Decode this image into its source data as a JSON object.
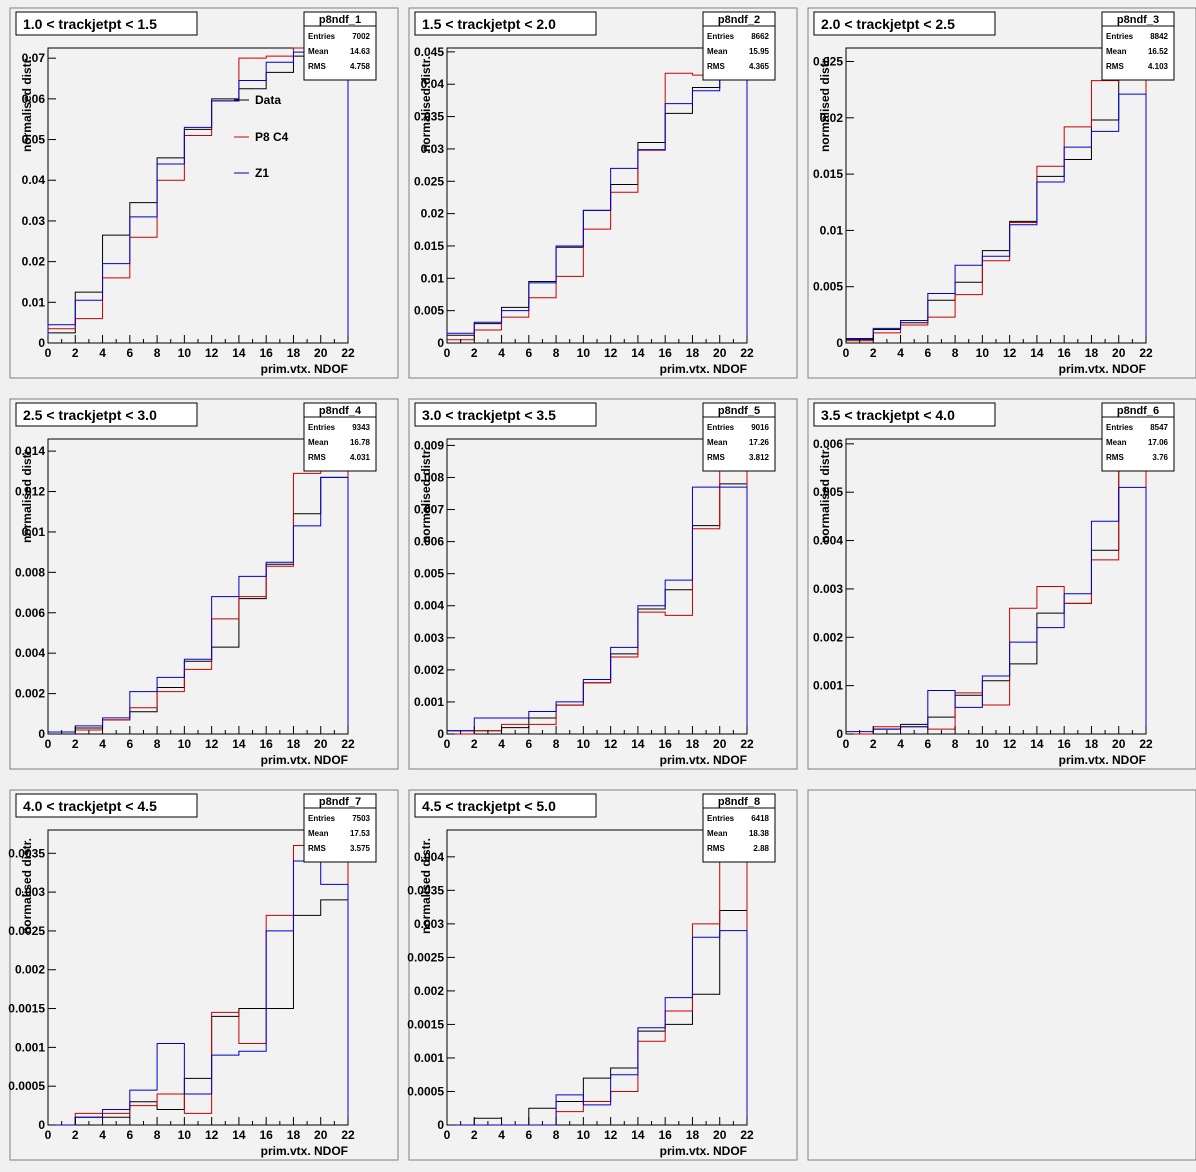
{
  "colors": {
    "data": "#000000",
    "p8c4": "#cc0000",
    "z1": "#0000cc",
    "pad": "#f2f2f2",
    "frame": "#808080"
  },
  "xlabel": "prim.vtx. NDOF",
  "ylabel": "normalised distr.",
  "legend": [
    "Data",
    "P8 C4",
    "Z1"
  ],
  "stats_labels": [
    "Entries",
    "Mean",
    "RMS"
  ],
  "chart_data": [
    {
      "type": "histogram",
      "title": "1.0 < trackjetpt < 1.5",
      "name": "p8ndf_1",
      "stats": {
        "entries": "7002",
        "mean": "14.63",
        "rms": "4.758"
      },
      "xlim": [
        0,
        22
      ],
      "ylim": [
        0,
        0.0725
      ],
      "xticks": [
        "0",
        "2",
        "4",
        "6",
        "8",
        "10",
        "12",
        "14",
        "16",
        "18",
        "20",
        "22"
      ],
      "yticks": [
        [
          0,
          "0"
        ],
        [
          0.01,
          "0.01"
        ],
        [
          0.02,
          "0.02"
        ],
        [
          0.03,
          "0.03"
        ],
        [
          0.04,
          "0.04"
        ],
        [
          0.05,
          "0.05"
        ],
        [
          0.06,
          "0.06"
        ],
        [
          0.07,
          "0.07"
        ]
      ],
      "bin_edges": [
        0,
        2,
        4,
        6,
        8,
        10,
        12,
        14,
        16,
        18,
        20,
        22
      ],
      "series": [
        {
          "name": "Data",
          "color": "#000000",
          "values": [
            0.0025,
            0.0125,
            0.0265,
            0.0345,
            0.0455,
            0.0525,
            0.06,
            0.0625,
            0.0665,
            0.0705,
            0.0665
          ]
        },
        {
          "name": "P8 C4",
          "color": "#cc0000",
          "values": [
            0.0035,
            0.006,
            0.016,
            0.026,
            0.04,
            0.051,
            0.0595,
            0.07,
            0.0705,
            0.0725,
            0.0675
          ]
        },
        {
          "name": "Z1",
          "color": "#0000cc",
          "values": [
            0.0045,
            0.0105,
            0.0195,
            0.031,
            0.044,
            0.053,
            0.0595,
            0.0645,
            0.069,
            0.0715,
            0.066
          ]
        }
      ]
    },
    {
      "type": "histogram",
      "title": "1.5 < trackjetpt < 2.0",
      "name": "p8ndf_2",
      "stats": {
        "entries": "8662",
        "mean": "15.95",
        "rms": "4.365"
      },
      "xlim": [
        0,
        22
      ],
      "ylim": [
        0,
        0.0456
      ],
      "xticks": [
        "0",
        "2",
        "4",
        "6",
        "8",
        "10",
        "12",
        "14",
        "16",
        "18",
        "20",
        "22"
      ],
      "yticks": [
        [
          0,
          "0"
        ],
        [
          0.005,
          "0.005"
        ],
        [
          0.01,
          "0.01"
        ],
        [
          0.015,
          "0.015"
        ],
        [
          0.02,
          "0.02"
        ],
        [
          0.025,
          "0.025"
        ],
        [
          0.03,
          "0.03"
        ],
        [
          0.035,
          "0.035"
        ],
        [
          0.04,
          "0.04"
        ],
        [
          0.045,
          "0.045"
        ]
      ],
      "bin_edges": [
        0,
        2,
        4,
        6,
        8,
        10,
        12,
        14,
        16,
        18,
        20,
        22
      ],
      "series": [
        {
          "name": "Data",
          "color": "#000000",
          "values": [
            0.0012,
            0.003,
            0.0055,
            0.0095,
            0.0148,
            0.0205,
            0.0245,
            0.031,
            0.0355,
            0.0395,
            0.0428
          ]
        },
        {
          "name": "P8 C4",
          "color": "#cc0000",
          "values": [
            0.0005,
            0.002,
            0.004,
            0.007,
            0.0103,
            0.0176,
            0.0233,
            0.0298,
            0.0417,
            0.0414,
            0.0452
          ]
        },
        {
          "name": "Z1",
          "color": "#0000cc",
          "values": [
            0.0015,
            0.0032,
            0.005,
            0.0093,
            0.015,
            0.0205,
            0.027,
            0.0299,
            0.037,
            0.039,
            0.041
          ]
        }
      ]
    },
    {
      "type": "histogram",
      "title": "2.0 < trackjetpt < 2.5",
      "name": "p8ndf_3",
      "stats": {
        "entries": "8842",
        "mean": "16.52",
        "rms": "4.103"
      },
      "xlim": [
        0,
        22
      ],
      "ylim": [
        0,
        0.0262
      ],
      "xticks": [
        "0",
        "2",
        "4",
        "6",
        "8",
        "10",
        "12",
        "14",
        "16",
        "18",
        "20",
        "22"
      ],
      "yticks": [
        [
          0,
          "0"
        ],
        [
          0.005,
          "0.005"
        ],
        [
          0.01,
          "0.01"
        ],
        [
          0.015,
          "0.015"
        ],
        [
          0.02,
          "0.02"
        ],
        [
          0.025,
          "0.025"
        ]
      ],
      "bin_edges": [
        0,
        2,
        4,
        6,
        8,
        10,
        12,
        14,
        16,
        18,
        20,
        22
      ],
      "series": [
        {
          "name": "Data",
          "color": "#000000",
          "values": [
            0.0003,
            0.0012,
            0.0018,
            0.0038,
            0.0054,
            0.0082,
            0.0108,
            0.0148,
            0.0163,
            0.0198,
            0.0235
          ]
        },
        {
          "name": "P8 C4",
          "color": "#cc0000",
          "values": [
            0.0002,
            0.0009,
            0.0016,
            0.0023,
            0.0043,
            0.0073,
            0.0107,
            0.0157,
            0.0192,
            0.0233,
            0.0262
          ]
        },
        {
          "name": "Z1",
          "color": "#0000cc",
          "values": [
            0.0004,
            0.0013,
            0.002,
            0.0044,
            0.0069,
            0.0077,
            0.0105,
            0.0143,
            0.0174,
            0.0188,
            0.0221
          ]
        }
      ]
    },
    {
      "type": "histogram",
      "title": "2.5 < trackjetpt < 3.0",
      "name": "p8ndf_4",
      "stats": {
        "entries": "9343",
        "mean": "16.78",
        "rms": "4.031"
      },
      "xlim": [
        0,
        22
      ],
      "ylim": [
        0,
        0.0146
      ],
      "xticks": [
        "0",
        "2",
        "4",
        "6",
        "8",
        "10",
        "12",
        "14",
        "16",
        "18",
        "20",
        "22"
      ],
      "yticks": [
        [
          0,
          "0"
        ],
        [
          0.002,
          "0.002"
        ],
        [
          0.004,
          "0.004"
        ],
        [
          0.006,
          "0.006"
        ],
        [
          0.008,
          "0.008"
        ],
        [
          0.01,
          "0.01"
        ],
        [
          0.012,
          "0.012"
        ],
        [
          0.014,
          "0.014"
        ]
      ],
      "bin_edges": [
        0,
        2,
        4,
        6,
        8,
        10,
        12,
        14,
        16,
        18,
        20,
        22
      ],
      "series": [
        {
          "name": "Data",
          "color": "#000000",
          "values": [
            0.0001,
            0.0003,
            0.0007,
            0.0011,
            0.0023,
            0.0036,
            0.0043,
            0.0067,
            0.0084,
            0.0109,
            0.0127
          ]
        },
        {
          "name": "P8 C4",
          "color": "#cc0000",
          "values": [
            0.0001,
            0.0002,
            0.0007,
            0.0013,
            0.0021,
            0.0032,
            0.0057,
            0.0068,
            0.0083,
            0.0129,
            0.0135
          ]
        },
        {
          "name": "Z1",
          "color": "#0000cc",
          "values": [
            0.0001,
            0.0004,
            0.0008,
            0.0021,
            0.0028,
            0.0037,
            0.0068,
            0.0078,
            0.0085,
            0.0103,
            0.0127
          ]
        }
      ]
    },
    {
      "type": "histogram",
      "title": "3.0 < trackjetpt < 3.5",
      "name": "p8ndf_5",
      "stats": {
        "entries": "9016",
        "mean": "17.26",
        "rms": "3.812"
      },
      "xlim": [
        0,
        22
      ],
      "ylim": [
        0,
        0.0092
      ],
      "xticks": [
        "0",
        "2",
        "4",
        "6",
        "8",
        "10",
        "12",
        "14",
        "16",
        "18",
        "20",
        "22"
      ],
      "yticks": [
        [
          0,
          "0"
        ],
        [
          0.001,
          "0.001"
        ],
        [
          0.002,
          "0.002"
        ],
        [
          0.003,
          "0.003"
        ],
        [
          0.004,
          "0.004"
        ],
        [
          0.005,
          "0.005"
        ],
        [
          0.006,
          "0.006"
        ],
        [
          0.007,
          "0.007"
        ],
        [
          0.008,
          "0.008"
        ],
        [
          0.009,
          "0.009"
        ]
      ],
      "bin_edges": [
        0,
        2,
        4,
        6,
        8,
        10,
        12,
        14,
        16,
        18,
        20,
        22
      ],
      "series": [
        {
          "name": "Data",
          "color": "#000000",
          "values": [
            0.0001,
            0.0001,
            0.0002,
            0.0005,
            0.0009,
            0.0016,
            0.0025,
            0.0039,
            0.0045,
            0.0065,
            0.0078
          ]
        },
        {
          "name": "P8 C4",
          "color": "#cc0000",
          "values": [
            0.0,
            0.0001,
            0.0003,
            0.0003,
            0.0009,
            0.0016,
            0.0024,
            0.0038,
            0.0037,
            0.0064,
            0.0085
          ]
        },
        {
          "name": "Z1",
          "color": "#0000cc",
          "values": [
            0.0001,
            0.0005,
            0.0005,
            0.0007,
            0.001,
            0.0017,
            0.0027,
            0.004,
            0.0048,
            0.0077,
            0.0077
          ]
        }
      ]
    },
    {
      "type": "histogram",
      "title": "3.5 < trackjetpt < 4.0",
      "name": "p8ndf_6",
      "stats": {
        "entries": "8547",
        "mean": "17.06",
        "rms": "3.76"
      },
      "xlim": [
        0,
        22
      ],
      "ylim": [
        0,
        0.0061
      ],
      "xticks": [
        "0",
        "2",
        "4",
        "6",
        "8",
        "10",
        "12",
        "14",
        "16",
        "18",
        "20",
        "22"
      ],
      "yticks": [
        [
          0,
          "0"
        ],
        [
          0.001,
          "0.001"
        ],
        [
          0.002,
          "0.002"
        ],
        [
          0.003,
          "0.003"
        ],
        [
          0.004,
          "0.004"
        ],
        [
          0.005,
          "0.005"
        ],
        [
          0.006,
          "0.006"
        ]
      ],
      "bin_edges": [
        0,
        2,
        4,
        6,
        8,
        10,
        12,
        14,
        16,
        18,
        20,
        22
      ],
      "series": [
        {
          "name": "Data",
          "color": "#000000",
          "values": [
            0.0,
            0.0001,
            0.0002,
            0.00035,
            0.0008,
            0.0011,
            0.00145,
            0.0025,
            0.0027,
            0.0038,
            0.0056
          ]
        },
        {
          "name": "P8 C4",
          "color": "#cc0000",
          "values": [
            0.0,
            0.00015,
            0.00015,
            0.0001,
            0.00085,
            0.0006,
            0.0026,
            0.00305,
            0.0027,
            0.0036,
            0.0058
          ]
        },
        {
          "name": "Z1",
          "color": "#0000cc",
          "values": [
            5e-05,
            0.0001,
            0.00015,
            0.0009,
            0.00055,
            0.0012,
            0.0019,
            0.0022,
            0.0029,
            0.0044,
            0.0051
          ]
        }
      ]
    },
    {
      "type": "histogram",
      "title": "4.0 < trackjetpt < 4.5",
      "name": "p8ndf_7",
      "stats": {
        "entries": "7503",
        "mean": "17.53",
        "rms": "3.575"
      },
      "xlim": [
        0,
        22
      ],
      "ylim": [
        0,
        0.0038
      ],
      "xticks": [
        "0",
        "2",
        "4",
        "6",
        "8",
        "10",
        "12",
        "14",
        "16",
        "18",
        "20",
        "22"
      ],
      "yticks": [
        [
          0,
          "0"
        ],
        [
          0.0005,
          "0.0005"
        ],
        [
          0.001,
          "0.001"
        ],
        [
          0.0015,
          "0.0015"
        ],
        [
          0.002,
          "0.002"
        ],
        [
          0.0025,
          "0.0025"
        ],
        [
          0.003,
          "0.003"
        ],
        [
          0.0035,
          "0.0035"
        ]
      ],
      "bin_edges": [
        0,
        2,
        4,
        6,
        8,
        10,
        12,
        14,
        16,
        18,
        20,
        22
      ],
      "series": [
        {
          "name": "Data",
          "color": "#000000",
          "values": [
            0.0,
            0.0001,
            0.0001,
            0.0003,
            0.0002,
            0.0006,
            0.0014,
            0.0015,
            0.0015,
            0.0027,
            0.0029
          ]
        },
        {
          "name": "P8 C4",
          "color": "#cc0000",
          "values": [
            0.0,
            0.00015,
            0.00015,
            0.00025,
            0.0004,
            0.00015,
            0.00145,
            0.00105,
            0.0027,
            0.0036,
            0.0036
          ]
        },
        {
          "name": "Z1",
          "color": "#0000cc",
          "values": [
            0.0,
            0.0001,
            0.0002,
            0.00045,
            0.00105,
            0.0004,
            0.0009,
            0.00095,
            0.0025,
            0.0034,
            0.0031
          ]
        }
      ]
    },
    {
      "type": "histogram",
      "title": "4.5 < trackjetpt < 5.0",
      "name": "p8ndf_8",
      "stats": {
        "entries": "6418",
        "mean": "18.38",
        "rms": "2.88"
      },
      "xlim": [
        0,
        22
      ],
      "ylim": [
        0,
        0.0044
      ],
      "xticks": [
        "0",
        "2",
        "4",
        "6",
        "8",
        "10",
        "12",
        "14",
        "16",
        "18",
        "20",
        "22"
      ],
      "yticks": [
        [
          0,
          "0"
        ],
        [
          0.0005,
          "0.0005"
        ],
        [
          0.001,
          "0.001"
        ],
        [
          0.0015,
          "0.0015"
        ],
        [
          0.002,
          "0.002"
        ],
        [
          0.0025,
          "0.0025"
        ],
        [
          0.003,
          "0.003"
        ],
        [
          0.0035,
          "0.0035"
        ],
        [
          0.004,
          "0.004"
        ]
      ],
      "bin_edges": [
        0,
        2,
        4,
        6,
        8,
        10,
        12,
        14,
        16,
        18,
        20,
        22
      ],
      "series": [
        {
          "name": "Data",
          "color": "#000000",
          "values": [
            0.0,
            0.0001,
            0.0,
            0.00025,
            0.00035,
            0.0007,
            0.00085,
            0.0014,
            0.0015,
            0.00195,
            0.0032
          ]
        },
        {
          "name": "P8 C4",
          "color": "#cc0000",
          "values": [
            0.0,
            0.0,
            0.0,
            0.0,
            0.0002,
            0.00035,
            0.0005,
            0.00125,
            0.0017,
            0.003,
            0.0044
          ]
        },
        {
          "name": "Z1",
          "color": "#0000cc",
          "values": [
            0.0,
            0.0,
            0.0,
            0.0,
            0.00045,
            0.0003,
            0.00075,
            0.00145,
            0.0019,
            0.0028,
            0.0029
          ]
        }
      ]
    }
  ]
}
